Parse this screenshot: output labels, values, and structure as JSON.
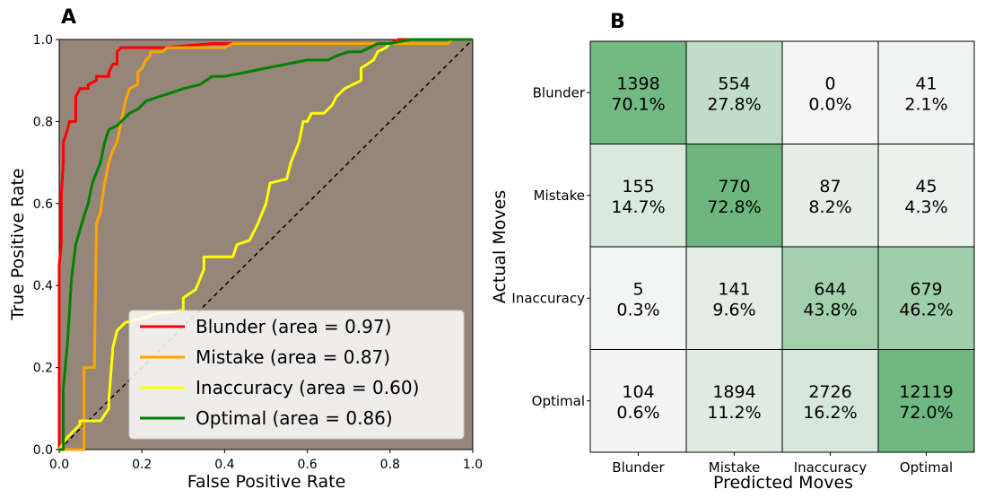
{
  "chart_data": [
    {
      "panel": "A",
      "type": "line",
      "xlabel": "False Positive Rate",
      "ylabel": "True Positive Rate",
      "xlim": [
        0.0,
        1.0
      ],
      "ylim": [
        0.0,
        1.0
      ],
      "xticks": [
        "0.0",
        "0.2",
        "0.4",
        "0.6",
        "0.8",
        "1.0"
      ],
      "yticks": [
        "0.0",
        "0.2",
        "0.4",
        "0.6",
        "0.8",
        "1.0"
      ],
      "legend_position": "lower-right",
      "plot_background": "#958679",
      "diagonal_reference": true,
      "series": [
        {
          "name": "Blunder (area = 0.97)",
          "color": "#ff0000",
          "points": [
            [
              0,
              0
            ],
            [
              0,
              0.45
            ],
            [
              0.005,
              0.5
            ],
            [
              0.005,
              0.62
            ],
            [
              0.01,
              0.7
            ],
            [
              0.01,
              0.75
            ],
            [
              0.02,
              0.78
            ],
            [
              0.025,
              0.8
            ],
            [
              0.04,
              0.8
            ],
            [
              0.04,
              0.86
            ],
            [
              0.05,
              0.88
            ],
            [
              0.07,
              0.88
            ],
            [
              0.07,
              0.89
            ],
            [
              0.09,
              0.9
            ],
            [
              0.09,
              0.91
            ],
            [
              0.12,
              0.91
            ],
            [
              0.12,
              0.92
            ],
            [
              0.13,
              0.94
            ],
            [
              0.14,
              0.94
            ],
            [
              0.14,
              0.97
            ],
            [
              0.15,
              0.98
            ],
            [
              0.25,
              0.98
            ],
            [
              0.37,
              0.99
            ],
            [
              0.8,
              0.99
            ],
            [
              0.82,
              1.0
            ],
            [
              1.0,
              1.0
            ]
          ]
        },
        {
          "name": "Mistake (area = 0.87)",
          "color": "#ffa500",
          "points": [
            [
              0,
              0
            ],
            [
              0.06,
              0
            ],
            [
              0.06,
              0.2
            ],
            [
              0.085,
              0.2
            ],
            [
              0.09,
              0.55
            ],
            [
              0.1,
              0.58
            ],
            [
              0.11,
              0.65
            ],
            [
              0.12,
              0.7
            ],
            [
              0.13,
              0.73
            ],
            [
              0.14,
              0.75
            ],
            [
              0.15,
              0.8
            ],
            [
              0.16,
              0.85
            ],
            [
              0.17,
              0.88
            ],
            [
              0.19,
              0.89
            ],
            [
              0.19,
              0.92
            ],
            [
              0.2,
              0.93
            ],
            [
              0.21,
              0.95
            ],
            [
              0.22,
              0.96
            ],
            [
              0.22,
              0.97
            ],
            [
              0.25,
              0.97
            ],
            [
              0.26,
              0.98
            ],
            [
              0.4,
              0.98
            ],
            [
              0.42,
              0.99
            ],
            [
              0.6,
              0.99
            ],
            [
              0.8,
              0.99
            ],
            [
              0.94,
              0.99
            ],
            [
              0.95,
              1.0
            ],
            [
              1.0,
              1.0
            ]
          ]
        },
        {
          "name": "Inaccuracy (area = 0.60)",
          "color": "#ffff00",
          "points": [
            [
              0,
              0
            ],
            [
              0.02,
              0.03
            ],
            [
              0.04,
              0.05
            ],
            [
              0.05,
              0.06
            ],
            [
              0.05,
              0.07
            ],
            [
              0.1,
              0.07
            ],
            [
              0.12,
              0.1
            ],
            [
              0.12,
              0.12
            ],
            [
              0.13,
              0.25
            ],
            [
              0.14,
              0.29
            ],
            [
              0.16,
              0.31
            ],
            [
              0.2,
              0.32
            ],
            [
              0.23,
              0.33
            ],
            [
              0.3,
              0.34
            ],
            [
              0.3,
              0.37
            ],
            [
              0.33,
              0.39
            ],
            [
              0.35,
              0.44
            ],
            [
              0.35,
              0.47
            ],
            [
              0.42,
              0.47
            ],
            [
              0.43,
              0.5
            ],
            [
              0.46,
              0.51
            ],
            [
              0.48,
              0.55
            ],
            [
              0.5,
              0.6
            ],
            [
              0.51,
              0.65
            ],
            [
              0.55,
              0.66
            ],
            [
              0.56,
              0.7
            ],
            [
              0.58,
              0.75
            ],
            [
              0.59,
              0.8
            ],
            [
              0.6,
              0.8
            ],
            [
              0.61,
              0.82
            ],
            [
              0.64,
              0.82
            ],
            [
              0.66,
              0.84
            ],
            [
              0.67,
              0.86
            ],
            [
              0.69,
              0.88
            ],
            [
              0.73,
              0.9
            ],
            [
              0.73,
              0.93
            ],
            [
              0.76,
              0.95
            ],
            [
              0.77,
              0.97
            ],
            [
              0.79,
              0.98
            ],
            [
              0.8,
              0.99
            ],
            [
              0.85,
              1.0
            ],
            [
              1.0,
              1.0
            ]
          ]
        },
        {
          "name": "Optimal (area = 0.86)",
          "color": "#008000",
          "points": [
            [
              0,
              0
            ],
            [
              0.01,
              0
            ],
            [
              0.01,
              0.15
            ],
            [
              0.02,
              0.26
            ],
            [
              0.03,
              0.42
            ],
            [
              0.04,
              0.5
            ],
            [
              0.06,
              0.57
            ],
            [
              0.07,
              0.6
            ],
            [
              0.08,
              0.65
            ],
            [
              0.1,
              0.7
            ],
            [
              0.11,
              0.75
            ],
            [
              0.12,
              0.78
            ],
            [
              0.14,
              0.79
            ],
            [
              0.15,
              0.8
            ],
            [
              0.17,
              0.82
            ],
            [
              0.19,
              0.83
            ],
            [
              0.21,
              0.85
            ],
            [
              0.24,
              0.86
            ],
            [
              0.27,
              0.87
            ],
            [
              0.3,
              0.88
            ],
            [
              0.34,
              0.89
            ],
            [
              0.37,
              0.91
            ],
            [
              0.4,
              0.91
            ],
            [
              0.45,
              0.92
            ],
            [
              0.5,
              0.93
            ],
            [
              0.55,
              0.94
            ],
            [
              0.6,
              0.95
            ],
            [
              0.65,
              0.95
            ],
            [
              0.67,
              0.96
            ],
            [
              0.7,
              0.97
            ],
            [
              0.73,
              0.97
            ],
            [
              0.75,
              0.98
            ],
            [
              0.77,
              0.99
            ],
            [
              0.8,
              0.99
            ],
            [
              0.85,
              1.0
            ],
            [
              1.0,
              1.0
            ]
          ]
        }
      ]
    },
    {
      "panel": "B",
      "type": "heatmap",
      "xlabel": "Predicted Moves",
      "ylabel": "Actual Moves",
      "row_labels": [
        "Blunder",
        "Mistake",
        "Inaccuracy",
        "Optimal"
      ],
      "col_labels": [
        "Blunder",
        "Mistake",
        "Inaccuracy",
        "Optimal"
      ],
      "counts": [
        [
          1398,
          554,
          0,
          41
        ],
        [
          155,
          770,
          87,
          45
        ],
        [
          5,
          141,
          644,
          679
        ],
        [
          104,
          1894,
          2726,
          12119
        ]
      ],
      "percents": [
        [
          "70.1%",
          "27.8%",
          "0.0%",
          "2.1%"
        ],
        [
          "14.7%",
          "72.8%",
          "8.2%",
          "4.3%"
        ],
        [
          "0.3%",
          "9.6%",
          "43.8%",
          "46.2%"
        ],
        [
          "0.6%",
          "11.2%",
          "16.2%",
          "72.0%"
        ]
      ],
      "colormap": [
        "#f5f5f5",
        "#6db77f"
      ]
    }
  ]
}
